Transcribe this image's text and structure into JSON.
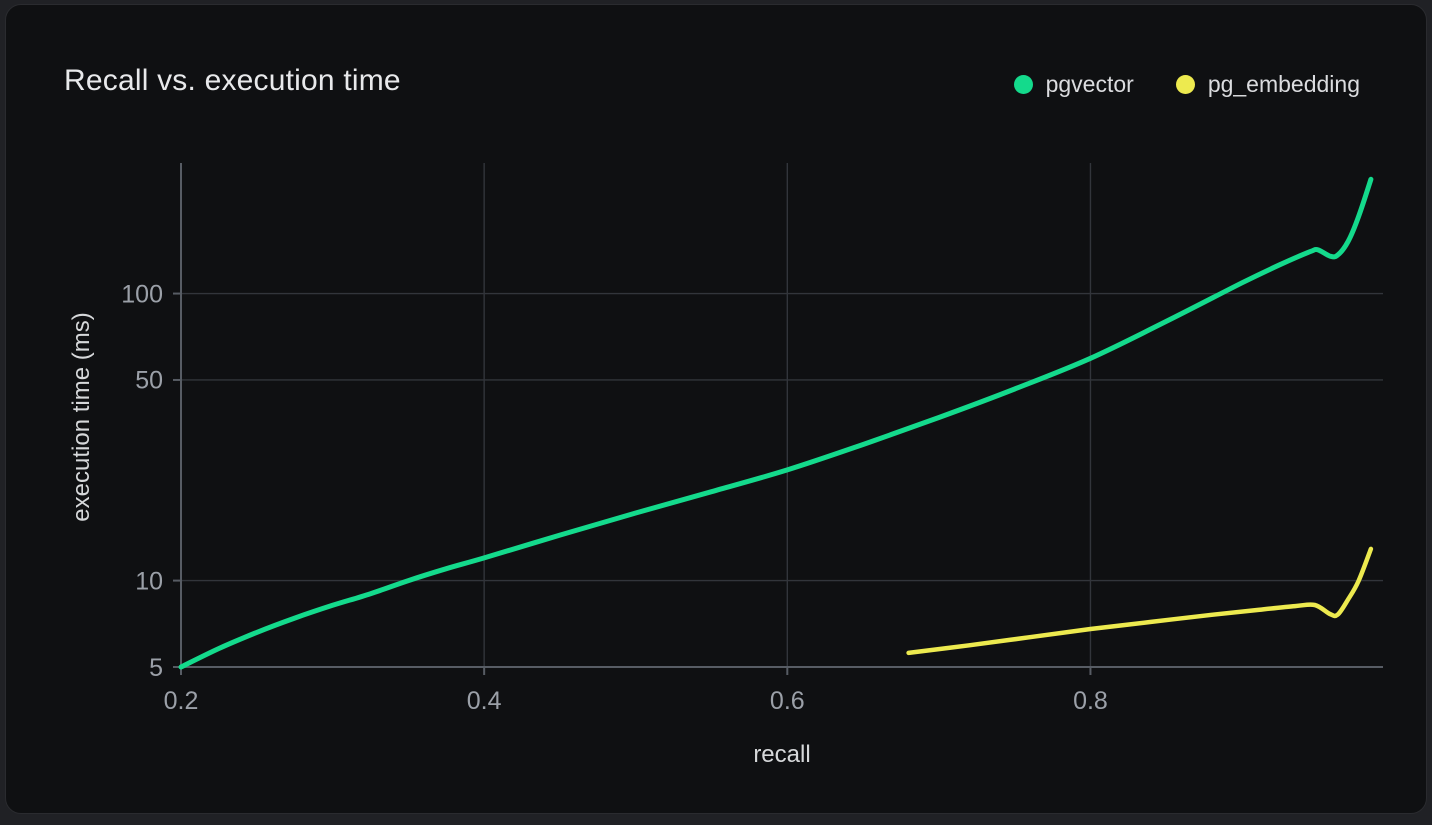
{
  "card": {
    "title": "Recall vs. execution time"
  },
  "legend": [
    {
      "label": "pgvector",
      "color": "#14da8c"
    },
    {
      "label": "pg_embedding",
      "color": "#edea4f"
    }
  ],
  "chart_data": {
    "type": "line",
    "title": "Recall vs. execution time",
    "xlabel": "recall",
    "ylabel": "execution time (ms)",
    "x_scale": "linear",
    "y_scale": "log",
    "grid": true,
    "legend_position": "top-right",
    "xlim": [
      0.2,
      0.993
    ],
    "ylim": [
      5,
      285
    ],
    "x_ticks": [
      "0.2",
      "0.4",
      "0.6",
      "0.8"
    ],
    "y_ticks": [
      "5",
      "10",
      "50",
      "100"
    ],
    "series": [
      {
        "name": "pgvector",
        "color": "#14da8c",
        "stroke_width": 5,
        "points": [
          [
            0.2,
            5.0
          ],
          [
            0.225,
            5.8
          ],
          [
            0.25,
            6.6
          ],
          [
            0.275,
            7.4
          ],
          [
            0.3,
            8.2
          ],
          [
            0.325,
            9.0
          ],
          [
            0.35,
            10.0
          ],
          [
            0.375,
            11.0
          ],
          [
            0.4,
            12.0
          ],
          [
            0.45,
            14.4
          ],
          [
            0.5,
            17.2
          ],
          [
            0.55,
            20.4
          ],
          [
            0.6,
            24.3
          ],
          [
            0.65,
            29.8
          ],
          [
            0.7,
            37.0
          ],
          [
            0.75,
            46.5
          ],
          [
            0.8,
            59.5
          ],
          [
            0.85,
            80.0
          ],
          [
            0.9,
            109.0
          ],
          [
            0.925,
            126.0
          ],
          [
            0.945,
            140.0
          ],
          [
            0.95,
            142.0
          ],
          [
            0.958,
            135.0
          ],
          [
            0.963,
            136.0
          ],
          [
            0.97,
            152.0
          ],
          [
            0.977,
            186.0
          ],
          [
            0.985,
            250.0
          ]
        ]
      },
      {
        "name": "pg_embedding",
        "color": "#edea4f",
        "stroke_width": 4.5,
        "points": [
          [
            0.68,
            5.6
          ],
          [
            0.72,
            5.95
          ],
          [
            0.76,
            6.35
          ],
          [
            0.8,
            6.78
          ],
          [
            0.84,
            7.18
          ],
          [
            0.88,
            7.6
          ],
          [
            0.91,
            7.9
          ],
          [
            0.935,
            8.15
          ],
          [
            0.948,
            8.22
          ],
          [
            0.958,
            7.65
          ],
          [
            0.963,
            7.6
          ],
          [
            0.97,
            8.6
          ],
          [
            0.977,
            10.0
          ],
          [
            0.985,
            12.9
          ]
        ]
      }
    ]
  },
  "theme": {
    "page_bg": "#202125",
    "card_bg": "#0f1012",
    "card_border": "#2a2b2f",
    "grid": "#32353b",
    "axis": "#575c64",
    "tick_text": "#9ba0a8",
    "label_text": "#d6d8da",
    "title_text": "#e8e9eb",
    "legend_text": "#dbdcdf"
  }
}
